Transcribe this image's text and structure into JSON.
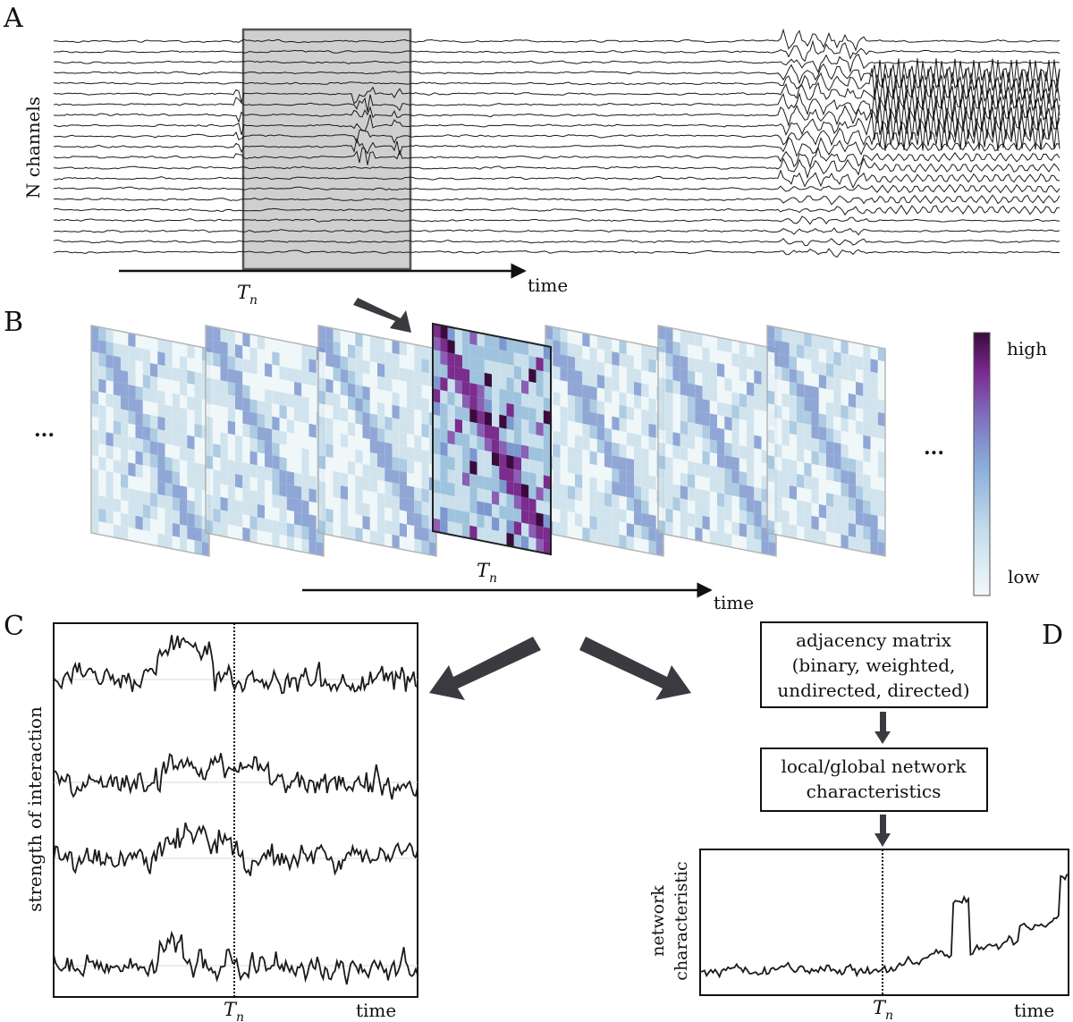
{
  "panels": {
    "a": {
      "letter": "A",
      "ylabel": "N channels",
      "time_label": "time",
      "window_label": "T",
      "window_sub": "n"
    },
    "b": {
      "letter": "B",
      "ellipsis_left": "...",
      "ellipsis_right": "...",
      "time_label": "time",
      "window_label": "T",
      "window_sub": "n",
      "colorbar_high": "high",
      "colorbar_low": "low"
    },
    "c": {
      "letter": "C",
      "ylabel": "strength of interaction",
      "time_label": "time",
      "window_label": "T",
      "window_sub": "n"
    },
    "d": {
      "letter": "D",
      "box1_lines": [
        "adjacency matrix",
        "(binary, weighted,",
        "undirected, directed)"
      ],
      "box2_lines": [
        "local/global network",
        "characteristics"
      ],
      "ylabel_lines": [
        "network",
        "characteristic"
      ],
      "time_label": "time",
      "window_label": "T",
      "window_sub": "n"
    }
  },
  "colors": {
    "trace": "#1a1a1a",
    "window_fill": "#cfcfcf",
    "arrow": "#3a3a40",
    "colormap": [
      "#eef6f9",
      "#c9e0ec",
      "#9fc3dd",
      "#7d98cf",
      "#8a5fb4",
      "#7a2d8c",
      "#3c0b3e"
    ]
  }
}
